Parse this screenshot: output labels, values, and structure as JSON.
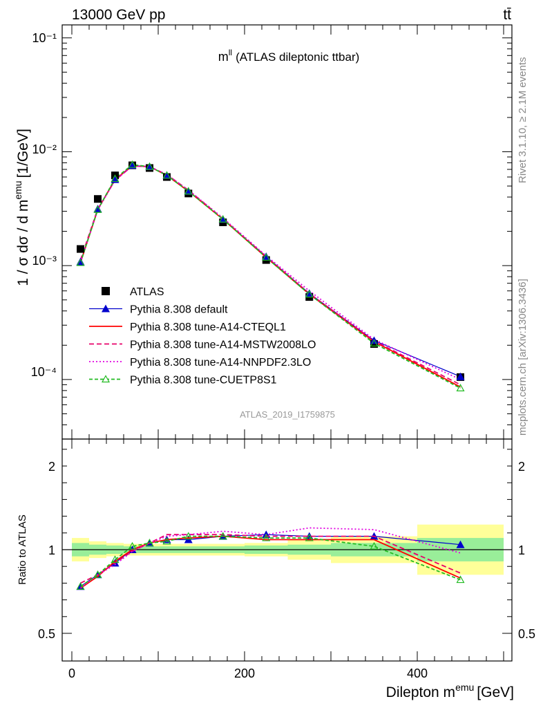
{
  "header": {
    "left": "13000 GeV pp",
    "right": "tt̄"
  },
  "side_labels": {
    "rivet": "Rivet 3.1.10, ≥ 2.1M events",
    "mcplots": "mcplots.cern.ch [arXiv:1306.3436]"
  },
  "chart_data": [
    {
      "type": "line",
      "panel": "main",
      "title_main": "m",
      "title_sup": "ll",
      "title_rest": "(ATLAS dileptonic ttbar)",
      "ylabel_main": "1 / σ  dσ / d m",
      "ylabel_sup": "emu",
      "ylabel_unit": "[1/GeV]",
      "yscale": "log",
      "ylim": [
        3e-05,
        0.13
      ],
      "xlim": [
        -20,
        505
      ],
      "y_tick_labels": [
        "10⁻⁴",
        "10⁻³",
        "10⁻²",
        "10⁻¹"
      ],
      "watermark": "ATLAS_2019_I1759875",
      "legend_position": "center-left",
      "x": [
        10,
        30,
        50,
        70,
        90,
        110,
        135,
        175,
        225,
        275,
        350,
        450
      ],
      "series": [
        {
          "name": "ATLAS",
          "color": "#000000",
          "marker": "square",
          "values": [
            0.0014,
            0.00385,
            0.0062,
            0.0076,
            0.0072,
            0.006,
            0.0043,
            0.0024,
            0.00112,
            0.00053,
            0.000205,
            0.000105
          ]
        },
        {
          "name": "Pythia 8.308 default",
          "color": "#0000cc",
          "marker": "triangle",
          "values": [
            0.00108,
            0.00315,
            0.0057,
            0.0076,
            0.0074,
            0.0062,
            0.0045,
            0.00255,
            0.0012,
            0.00057,
            0.00022,
            0.000106
          ]
        },
        {
          "name": "Pythia 8.308 tune-A14-CTEQL1",
          "color": "#ff0000",
          "style": "solid",
          "values": [
            0.00106,
            0.0031,
            0.0057,
            0.0075,
            0.0074,
            0.0062,
            0.0045,
            0.00255,
            0.00118,
            0.00056,
            0.000215,
            8.6e-05
          ]
        },
        {
          "name": "Pythia 8.308 tune-A14-MSTW2008LO",
          "color": "#e8006a",
          "style": "dashed",
          "values": [
            0.00112,
            0.00315,
            0.0056,
            0.0075,
            0.0074,
            0.0063,
            0.0046,
            0.00258,
            0.0012,
            0.00057,
            0.000218,
            9e-05
          ]
        },
        {
          "name": "Pythia 8.308 tune-A14-NNPDF2.3LO",
          "color": "#e000e0",
          "style": "dotted",
          "values": [
            0.00107,
            0.00308,
            0.0056,
            0.0075,
            0.0074,
            0.0063,
            0.0046,
            0.00262,
            0.00122,
            0.0006,
            0.000225,
            0.0001
          ]
        },
        {
          "name": "Pythia 8.308 tune-CUETP8S1",
          "color": "#22bb22",
          "style": "dashed-open-triangle",
          "values": [
            0.00106,
            0.0031,
            0.0058,
            0.0077,
            0.0074,
            0.0062,
            0.0045,
            0.00255,
            0.00118,
            0.00056,
            0.000208,
            8.4e-05
          ]
        }
      ]
    },
    {
      "type": "line",
      "panel": "ratio",
      "ylabel": "Ratio to ATLAS",
      "xlabel_main": "Dilepton m",
      "xlabel_sup": "emu",
      "xlabel_unit": "[GeV]",
      "ylim": [
        0.4,
        2.3
      ],
      "xlim": [
        -20,
        505
      ],
      "y_tick_labels": [
        "0.5",
        "1",
        "2"
      ],
      "x_tick_labels": [
        "0",
        "200",
        "400"
      ],
      "x": [
        10,
        30,
        50,
        70,
        90,
        110,
        135,
        175,
        225,
        275,
        350,
        450
      ],
      "bins": [
        [
          0,
          20
        ],
        [
          20,
          40
        ],
        [
          40,
          60
        ],
        [
          60,
          80
        ],
        [
          80,
          100
        ],
        [
          100,
          120
        ],
        [
          120,
          150
        ],
        [
          150,
          200
        ],
        [
          200,
          250
        ],
        [
          250,
          300
        ],
        [
          300,
          400
        ],
        [
          400,
          500
        ]
      ],
      "band_green": [
        0.04,
        0.03,
        0.025,
        0.02,
        0.02,
        0.02,
        0.02,
        0.02,
        0.025,
        0.03,
        0.04,
        0.07
      ],
      "band_yellow": [
        0.07,
        0.05,
        0.04,
        0.035,
        0.035,
        0.035,
        0.035,
        0.035,
        0.04,
        0.06,
        0.08,
        0.15
      ],
      "series": [
        {
          "name": "Pythia 8.308 default",
          "color": "#0000cc",
          "values": [
            0.78,
            0.85,
            0.92,
            1.0,
            1.04,
            1.06,
            1.06,
            1.08,
            1.09,
            1.08,
            1.08,
            1.03
          ]
        },
        {
          "name": "Pythia 8.308 tune-A14-CTEQL1",
          "color": "#ff0000",
          "values": [
            0.77,
            0.84,
            0.93,
            1.0,
            1.04,
            1.06,
            1.07,
            1.08,
            1.06,
            1.06,
            1.06,
            0.83
          ]
        },
        {
          "name": "Pythia 8.308 tune-A14-MSTW2008LO",
          "color": "#e8006a",
          "values": [
            0.8,
            0.85,
            0.92,
            0.99,
            1.04,
            1.09,
            1.09,
            1.09,
            1.08,
            1.08,
            1.08,
            0.86
          ]
        },
        {
          "name": "Pythia 8.308 tune-A14-NNPDF2.3LO",
          "color": "#e000e0",
          "values": [
            0.77,
            0.85,
            0.91,
            0.99,
            1.04,
            1.08,
            1.09,
            1.11,
            1.09,
            1.13,
            1.12,
            0.98
          ]
        },
        {
          "name": "Pythia 8.308 tune-CUETP8S1",
          "color": "#22bb22",
          "values": [
            0.78,
            0.85,
            0.94,
            1.02,
            1.04,
            1.05,
            1.08,
            1.08,
            1.07,
            1.07,
            1.02,
            0.82
          ]
        }
      ]
    }
  ]
}
